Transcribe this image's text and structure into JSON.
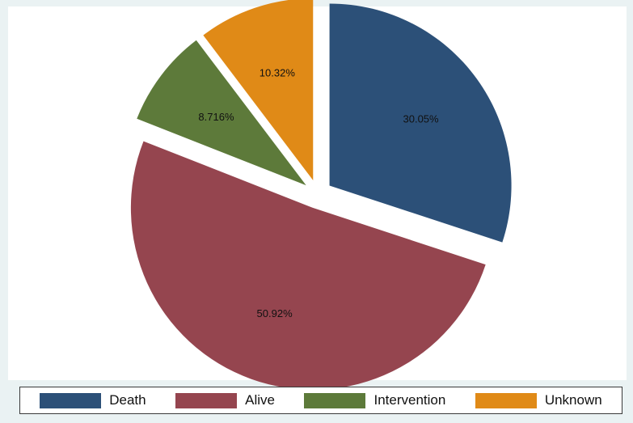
{
  "chart_data": {
    "type": "pie",
    "title": "",
    "slices": [
      {
        "name": "Death",
        "value": 30.05,
        "label": "30.05%",
        "color": "#2c5078"
      },
      {
        "name": "Alive",
        "value": 50.92,
        "label": "50.92%",
        "color": "#95454f"
      },
      {
        "name": "Intervention",
        "value": 8.716,
        "label": "8.716%",
        "color": "#5d7a3a"
      },
      {
        "name": "Unknown",
        "value": 10.32,
        "label": "10.32%",
        "color": "#e08a17"
      }
    ],
    "exploded": true,
    "start": "12 o'clock",
    "direction": "clockwise",
    "legend_position": "bottom"
  }
}
